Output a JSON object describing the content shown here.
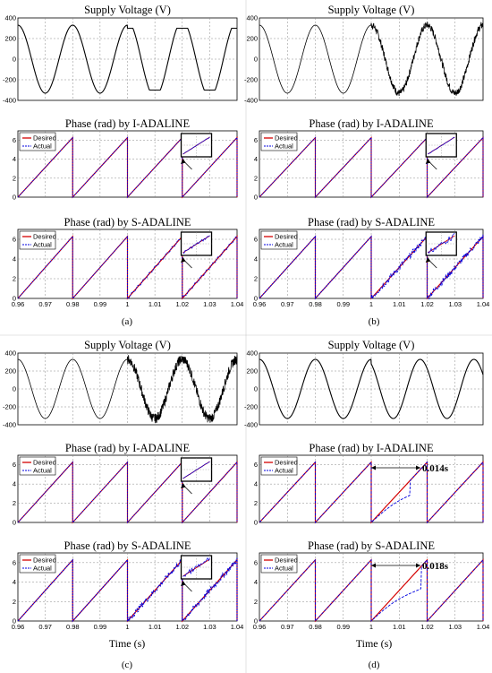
{
  "colors": {
    "desired": "#d40000",
    "actual": "#0000e0",
    "voltage": "#000000",
    "grid": "#888888"
  },
  "titles": {
    "voltage": "Supply Voltage (V)",
    "iadaline": "Phase (rad) by I-ADALINE",
    "sadaline": "Phase (rad) by S-ADALINE"
  },
  "xlabel": "Time (s)",
  "legend": {
    "desired": "Desired",
    "actual": "Actual"
  },
  "panel_labels": {
    "a": "(a)",
    "b": "(b)",
    "c": "(c)",
    "d": "(d)"
  },
  "annotations": {
    "d_iadaline": "0.014s",
    "d_sadaline": "0.018s"
  },
  "chart_data": [
    {
      "panel": "a",
      "type": "line",
      "title": "Supply Voltage (V)",
      "x_range": [
        0.96,
        1.04
      ],
      "ylim": [
        -400,
        400
      ],
      "yticks": [
        -400,
        -200,
        0,
        200,
        400
      ],
      "series": [
        {
          "values": "sinusoid, amplitude ~330 V, 50 Hz; from t=1.0 s the wave becomes flat-topped (amplitude ~300 V)"
        }
      ]
    },
    {
      "panel": "a",
      "type": "line",
      "title": "Phase (rad) by I-ADALINE",
      "x_range": [
        0.96,
        1.04
      ],
      "ylim": [
        0,
        7
      ],
      "yticks": [
        0,
        2,
        4,
        6
      ],
      "series": [
        {
          "name": "Desired",
          "values": "sawtooth 0 to 2π, period 0.02 s"
        },
        {
          "name": "Actual",
          "values": "tracks Desired"
        }
      ]
    },
    {
      "panel": "a",
      "type": "line",
      "title": "Phase (rad) by S-ADALINE",
      "x_range": [
        0.96,
        1.04
      ],
      "ylim": [
        0,
        7
      ],
      "yticks": [
        0,
        2,
        4,
        6
      ],
      "xticks": [
        0.96,
        0.97,
        0.98,
        0.99,
        1,
        1.01,
        1.02,
        1.03,
        1.04
      ],
      "series": [
        {
          "name": "Desired"
        },
        {
          "name": "Actual",
          "values": "small ripples after t=1.0 s"
        }
      ]
    },
    {
      "panel": "b",
      "type": "line",
      "title": "Supply Voltage (V)",
      "x_range": [
        0.96,
        1.04
      ],
      "ylim": [
        -400,
        400
      ],
      "yticks": [
        -400,
        -200,
        0,
        200,
        400
      ],
      "series": [
        {
          "values": "sinusoid ~330 V; noise added from t=1.0 s"
        }
      ]
    },
    {
      "panel": "b",
      "type": "line",
      "title": "Phase (rad) by I-ADALINE",
      "x_range": [
        0.96,
        1.04
      ],
      "ylim": [
        0,
        7
      ],
      "yticks": [
        0,
        2,
        4,
        6
      ],
      "series": [
        {
          "name": "Desired"
        },
        {
          "name": "Actual"
        }
      ]
    },
    {
      "panel": "b",
      "type": "line",
      "title": "Phase (rad) by S-ADALINE",
      "x_range": [
        0.96,
        1.04
      ],
      "ylim": [
        0,
        7
      ],
      "yticks": [
        0,
        2,
        4,
        6
      ],
      "xticks": [
        0.96,
        0.97,
        0.98,
        0.99,
        1,
        1.01,
        1.02,
        1.03,
        1.04
      ],
      "series": [
        {
          "name": "Desired"
        },
        {
          "name": "Actual",
          "values": "noisy after t=1.0 s"
        }
      ]
    },
    {
      "panel": "c",
      "type": "line",
      "title": "Supply Voltage (V)",
      "x_range": [
        0.96,
        1.04
      ],
      "ylim": [
        -400,
        400
      ],
      "yticks": [
        -400,
        -200,
        0,
        200,
        400
      ],
      "series": [
        {
          "values": "sinusoid ~330 V; heavy noise from t=1.0 s"
        }
      ]
    },
    {
      "panel": "c",
      "type": "line",
      "title": "Phase (rad) by I-ADALINE",
      "x_range": [
        0.96,
        1.04
      ],
      "ylim": [
        0,
        7
      ],
      "yticks": [
        0,
        2,
        4,
        6
      ],
      "series": [
        {
          "name": "Desired"
        },
        {
          "name": "Actual"
        }
      ]
    },
    {
      "panel": "c",
      "type": "line",
      "title": "Phase (rad) by S-ADALINE",
      "x_range": [
        0.96,
        1.04
      ],
      "ylim": [
        0,
        7
      ],
      "yticks": [
        0,
        2,
        4,
        6
      ],
      "xticks": [
        0.96,
        0.97,
        0.98,
        0.99,
        1,
        1.01,
        1.02,
        1.03,
        1.04
      ],
      "series": [
        {
          "name": "Desired"
        },
        {
          "name": "Actual",
          "values": "noisy after t=1.0 s"
        }
      ]
    },
    {
      "panel": "d",
      "type": "line",
      "title": "Supply Voltage (V)",
      "x_range": [
        0.96,
        1.04
      ],
      "ylim": [
        -400,
        400
      ],
      "yticks": [
        -400,
        -200,
        0,
        200,
        400
      ],
      "series": [
        {
          "values": "sinusoid ~330 V, frequency shift at t=1.0 s"
        }
      ]
    },
    {
      "panel": "d",
      "type": "line",
      "title": "Phase (rad) by I-ADALINE",
      "x_range": [
        0.96,
        1.04
      ],
      "ylim": [
        0,
        7
      ],
      "yticks": [
        0,
        2,
        4,
        6
      ],
      "series": [
        {
          "name": "Desired"
        },
        {
          "name": "Actual",
          "values": "re-converges within 0.014 s after t=1.0 s"
        }
      ]
    },
    {
      "panel": "d",
      "type": "line",
      "title": "Phase (rad) by S-ADALINE",
      "x_range": [
        0.96,
        1.04
      ],
      "ylim": [
        0,
        7
      ],
      "yticks": [
        0,
        2,
        4,
        6
      ],
      "xticks": [
        0.96,
        0.97,
        0.98,
        0.99,
        1,
        1.01,
        1.02,
        1.03,
        1.04
      ],
      "series": [
        {
          "name": "Desired"
        },
        {
          "name": "Actual",
          "values": "re-converges within 0.018 s after t=1.0 s"
        }
      ]
    }
  ],
  "tick_labels": {
    "x": [
      "0.96",
      "0.97",
      "0.98",
      "0.99",
      "1",
      "1.01",
      "1.02",
      "1.03",
      "1.04"
    ],
    "v": [
      "400",
      "200",
      "0",
      "-200",
      "-400"
    ],
    "p": [
      "6",
      "4",
      "2",
      "0"
    ]
  }
}
